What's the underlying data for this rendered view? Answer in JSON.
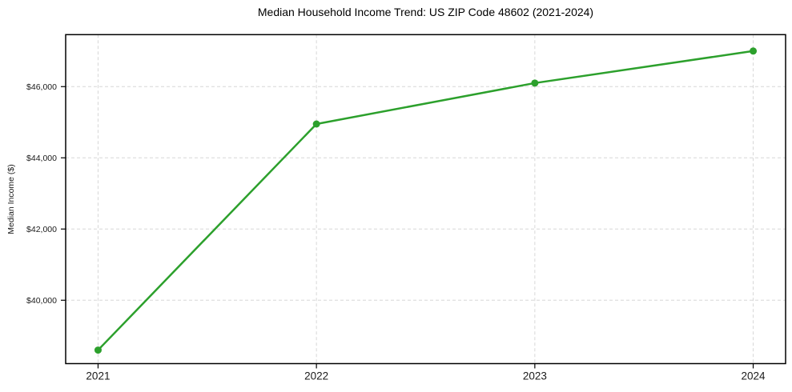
{
  "chart_data": {
    "type": "line",
    "title": "Median Household Income Trend: US ZIP Code 48602 (2021-2024)",
    "xlabel": "",
    "ylabel": "Median Income ($)",
    "categories": [
      "2021",
      "2022",
      "2023",
      "2024"
    ],
    "series": [
      {
        "name": "Median Income",
        "values": [
          38600,
          44950,
          46100,
          47000
        ],
        "color": "#2ca02c",
        "line_width": 2.5,
        "marker": "circle",
        "marker_radius": 4.5
      }
    ],
    "y_ticks": [
      {
        "value": 40000,
        "label": "$40,000"
      },
      {
        "value": 42000,
        "label": "$42,000"
      },
      {
        "value": 44000,
        "label": "$44,000"
      },
      {
        "value": 46000,
        "label": "$46,000"
      }
    ],
    "ylim": [
      38220,
      47460
    ],
    "grid": {
      "show": true,
      "style": "dashed",
      "color": "#d7d7d7"
    },
    "axes": {
      "spine_color": "#000000",
      "tick_color": "#000000",
      "label_color": "#1a1a1a"
    },
    "legend": {
      "show": false
    }
  }
}
